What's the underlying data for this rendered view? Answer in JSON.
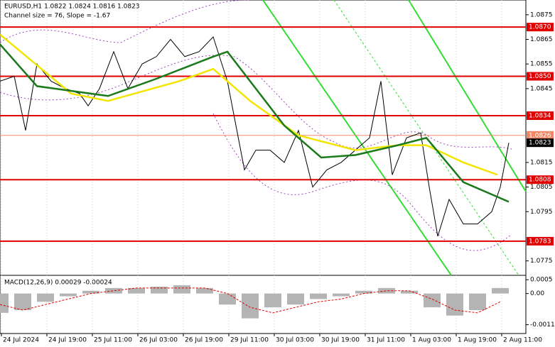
{
  "chart_data": [
    {
      "type": "line",
      "title": "EURUSD,H1  1.0822 1.0824 1.0816 1.0823",
      "subtitle": "Channel size = 76, Slope = -1.67",
      "xlim": [
        0,
        185
      ],
      "ylim": [
        1.077,
        1.0881
      ],
      "xticks": [
        {
          "value": 0,
          "label": "24 Jul 2024"
        },
        {
          "value": 16,
          "label": "24 Jul 19:00"
        },
        {
          "value": 32,
          "label": "25 Jul 11:00"
        },
        {
          "value": 48,
          "label": "26 Jul 03:00"
        },
        {
          "value": 64,
          "label": "26 Jul 19:00"
        },
        {
          "value": 80,
          "label": "29 Jul 11:00"
        },
        {
          "value": 96,
          "label": "30 Jul 03:00"
        },
        {
          "value": 112,
          "label": "30 Jul 19:00"
        },
        {
          "value": 128,
          "label": "31 Jul 11:00"
        },
        {
          "value": 144,
          "label": "1 Aug 03:00"
        },
        {
          "value": 160,
          "label": "1 Aug 19:00"
        },
        {
          "value": 176,
          "label": "2 Aug 11:00"
        }
      ],
      "yticks": [
        1.0875,
        1.0865,
        1.0855,
        1.0845,
        1.0815,
        1.0805,
        1.0795,
        1.0775
      ],
      "levels": [
        {
          "value": 1.087,
          "label": "1.0870"
        },
        {
          "value": 1.085,
          "label": "1.0850"
        },
        1.0834,
        1.0808,
        1.0783
      ],
      "level_color": "#e00000",
      "markers": [
        {
          "value": 1.0826,
          "color": "#f08868"
        },
        {
          "value": 1.0823,
          "color": "#000000"
        }
      ],
      "series": [
        {
          "color": "#000000",
          "x": [
            0,
            5,
            9,
            13,
            18,
            23,
            28,
            31,
            35,
            40,
            45,
            50,
            55,
            60,
            65,
            70,
            75,
            80,
            83,
            86,
            90,
            95,
            100,
            105,
            110,
            115,
            120,
            125,
            130,
            134,
            138,
            143,
            148,
            151,
            154,
            158,
            163,
            168,
            173,
            176,
            179
          ],
          "values": [
            1.0848,
            1.085,
            1.0828,
            1.0855,
            1.0848,
            1.0845,
            1.0843,
            1.0838,
            1.0845,
            1.086,
            1.0845,
            1.0855,
            1.0858,
            1.0865,
            1.0858,
            1.086,
            1.0866,
            1.0848,
            1.083,
            1.0812,
            1.082,
            1.082,
            1.0815,
            1.0828,
            1.0805,
            1.0812,
            1.0815,
            1.082,
            1.0825,
            1.0848,
            1.081,
            1.0825,
            1.0827,
            1.0805,
            1.0785,
            1.08,
            1.079,
            1.079,
            1.0795,
            1.0805,
            1.0823
          ]
        },
        {
          "color": "#f2e600",
          "x": [
            0,
            25,
            38,
            63,
            75,
            88,
            105,
            125,
            140,
            150,
            163,
            175
          ],
          "values": [
            1.0867,
            1.0843,
            1.084,
            1.0848,
            1.0853,
            1.084,
            1.0826,
            1.082,
            1.0822,
            1.0822,
            1.0815,
            1.081
          ]
        },
        {
          "color": "#1a7a1a",
          "x": [
            0,
            13,
            38,
            55,
            75,
            80,
            100,
            113,
            125,
            140,
            150,
            163,
            179
          ],
          "values": [
            1.0863,
            1.0846,
            1.0842,
            1.0849,
            1.0858,
            1.086,
            1.083,
            1.0817,
            1.0818,
            1.0822,
            1.0825,
            1.0807,
            1.0799
          ]
        }
      ]
    },
    {
      "type": "bar",
      "title": "MACD(12,26,9) 0.00029 -0.00024",
      "xlim": [
        0,
        185
      ],
      "ylim": [
        -0.00145,
        0.00066
      ],
      "yticks": [
        0.0005,
        {
          "value": 0,
          "label": "0.00"
        },
        -0.00113
      ],
      "x": [
        0,
        8,
        16,
        24,
        32,
        40,
        48,
        56,
        64,
        72,
        80,
        88,
        96,
        104,
        112,
        120,
        128,
        136,
        144,
        152,
        160,
        168,
        176
      ],
      "series": [
        {
          "color": "#b4b4b4",
          "values": [
            -0.0007,
            -0.0006,
            -0.0003,
            -0.0001,
            0.0001,
            0.0002,
            0.0002,
            0.00025,
            0.0003,
            0.0002,
            -0.0004,
            -0.0009,
            -0.0005,
            -0.0004,
            -0.0002,
            -0.0001,
            0.0001,
            0.0002,
            0.0001,
            -0.0005,
            -0.0008,
            -0.0006,
            0.0002
          ]
        },
        {
          "color": "#e00000",
          "values": [
            -0.0004,
            -0.0006,
            -0.0004,
            -0.0002,
            0,
            0.0001,
            0.0002,
            0.0002,
            0.0002,
            0.0002,
            0,
            -0.0005,
            -0.0007,
            -0.0005,
            -0.0003,
            -0.0002,
            0,
            0.0001,
            0.0001,
            -0.0002,
            -0.0006,
            -0.0007,
            -0.0003
          ]
        }
      ]
    }
  ]
}
